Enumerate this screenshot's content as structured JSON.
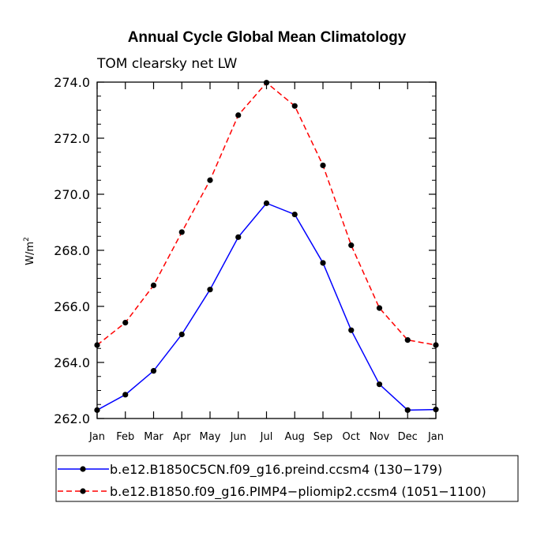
{
  "chart_data": {
    "type": "line",
    "title": "Annual Cycle Global Mean Climatology",
    "subtitle": "TOM clearsky net LW",
    "xlabel": "",
    "ylabel": "W/m",
    "ylabel_superscript": "2",
    "categories": [
      "Jan",
      "Feb",
      "Mar",
      "Apr",
      "May",
      "Jun",
      "Jul",
      "Aug",
      "Sep",
      "Oct",
      "Nov",
      "Dec",
      "Jan"
    ],
    "ylim": [
      262.0,
      274.0
    ],
    "yticks": [
      "262.0",
      "264.0",
      "266.0",
      "268.0",
      "270.0",
      "272.0",
      "274.0"
    ],
    "ytick_values": [
      262,
      264,
      266,
      268,
      270,
      272,
      274
    ],
    "grid": false,
    "legend_position": "bottom",
    "series": [
      {
        "name": "b.e12.B1850C5CN.f09_g16.preind.ccsm4 (130−179)",
        "color": "#0000ff",
        "style": "solid",
        "values": [
          262.3,
          262.85,
          263.7,
          265.0,
          266.6,
          268.47,
          269.68,
          269.28,
          267.55,
          265.15,
          263.22,
          262.3,
          262.32
        ]
      },
      {
        "name": "b.e12.B1850.f09_g16.PIMP4−pliomip2.ccsm4 (1051−1100)",
        "color": "#ff0000",
        "style": "dashed",
        "values": [
          264.62,
          265.42,
          266.75,
          268.65,
          270.5,
          272.82,
          273.98,
          273.15,
          271.03,
          268.18,
          265.94,
          264.8,
          264.62
        ]
      }
    ]
  }
}
